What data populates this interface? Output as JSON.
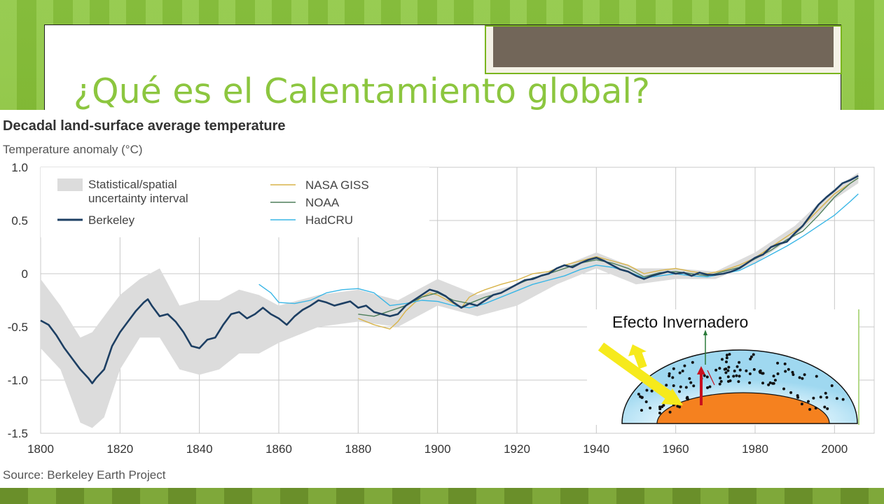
{
  "slide": {
    "title": "¿Qué es el Calentamiento global?"
  },
  "colors": {
    "background_green": "#8cc63f",
    "title_green": "#8cc63f",
    "title_box_fill": "#726659",
    "berkeley": "#1d3f63",
    "nasa_giss": "#d8b44a",
    "noaa": "#4f7f5c",
    "hadcru": "#39b6e6",
    "uncertainty": "#dcdcdc"
  },
  "chart_data": {
    "type": "line",
    "title": "Decadal land-surface average temperature",
    "ylabel": "Temperature anomaly (°C)",
    "source": "Source: Berkeley Earth Project",
    "xlim": [
      1800,
      2010
    ],
    "ylim": [
      -1.5,
      1.0
    ],
    "x_ticks": [
      1800,
      1820,
      1840,
      1860,
      1880,
      1900,
      1920,
      1940,
      1960,
      1980,
      2000
    ],
    "y_ticks": [
      -1.5,
      -1.0,
      -0.5,
      0,
      0.5,
      1.0
    ],
    "y_tick_labels": [
      "-1.5",
      "-1.0",
      "-0.5",
      "0",
      "0.5",
      "1.0"
    ],
    "grid": true,
    "legend_position": "top-left",
    "legend": {
      "uncertainty_line1": "Statistical/spatial",
      "uncertainty_line2": "uncertainty interval",
      "berkeley": "Berkeley",
      "nasa": "NASA GISS",
      "noaa": "NOAA",
      "hadcru": "HadCRU"
    },
    "uncertainty_band": {
      "x": [
        1800,
        1805,
        1810,
        1813,
        1816,
        1820,
        1825,
        1830,
        1835,
        1840,
        1845,
        1850,
        1855,
        1860,
        1870,
        1880,
        1890,
        1900,
        1910,
        1920,
        1930,
        1940,
        1950,
        1960,
        1970,
        1980,
        1990,
        2000,
        2006
      ],
      "upper": [
        -0.05,
        -0.3,
        -0.6,
        -0.55,
        -0.4,
        -0.2,
        -0.05,
        0.05,
        -0.3,
        -0.25,
        -0.25,
        -0.15,
        -0.2,
        -0.3,
        -0.2,
        -0.15,
        -0.25,
        -0.05,
        -0.2,
        -0.1,
        0.05,
        0.2,
        0.05,
        0.05,
        0.02,
        0.2,
        0.45,
        0.8,
        0.95
      ],
      "lower": [
        -0.7,
        -0.9,
        -1.4,
        -1.45,
        -1.35,
        -0.9,
        -0.6,
        -0.6,
        -0.9,
        -0.95,
        -0.9,
        -0.75,
        -0.75,
        -0.65,
        -0.5,
        -0.45,
        -0.5,
        -0.3,
        -0.4,
        -0.3,
        -0.1,
        0.05,
        -0.1,
        -0.05,
        -0.05,
        0.1,
        0.35,
        0.7,
        0.85
      ]
    },
    "series": [
      {
        "name": "Berkeley",
        "x": [
          1800,
          1802,
          1804,
          1806,
          1808,
          1810,
          1812,
          1813,
          1814,
          1816,
          1818,
          1820,
          1822,
          1824,
          1826,
          1827,
          1828,
          1830,
          1832,
          1834,
          1836,
          1838,
          1840,
          1842,
          1844,
          1846,
          1848,
          1850,
          1852,
          1854,
          1856,
          1858,
          1860,
          1862,
          1864,
          1866,
          1868,
          1870,
          1872,
          1874,
          1876,
          1878,
          1880,
          1882,
          1884,
          1886,
          1888,
          1890,
          1892,
          1894,
          1896,
          1898,
          1900,
          1902,
          1904,
          1906,
          1908,
          1910,
          1912,
          1914,
          1916,
          1918,
          1920,
          1922,
          1924,
          1926,
          1928,
          1930,
          1932,
          1934,
          1936,
          1938,
          1940,
          1942,
          1944,
          1946,
          1948,
          1950,
          1952,
          1954,
          1956,
          1958,
          1960,
          1962,
          1964,
          1966,
          1968,
          1970,
          1972,
          1974,
          1976,
          1978,
          1980,
          1982,
          1984,
          1986,
          1988,
          1990,
          1992,
          1994,
          1996,
          1998,
          2000,
          2002,
          2004,
          2006
        ],
        "y": [
          -0.44,
          -0.48,
          -0.58,
          -0.7,
          -0.8,
          -0.9,
          -0.98,
          -1.03,
          -0.98,
          -0.9,
          -0.68,
          -0.55,
          -0.45,
          -0.35,
          -0.27,
          -0.24,
          -0.3,
          -0.4,
          -0.38,
          -0.45,
          -0.55,
          -0.68,
          -0.7,
          -0.62,
          -0.6,
          -0.48,
          -0.38,
          -0.36,
          -0.42,
          -0.38,
          -0.32,
          -0.38,
          -0.42,
          -0.48,
          -0.4,
          -0.34,
          -0.3,
          -0.25,
          -0.27,
          -0.3,
          -0.28,
          -0.26,
          -0.32,
          -0.3,
          -0.36,
          -0.38,
          -0.4,
          -0.38,
          -0.3,
          -0.25,
          -0.2,
          -0.15,
          -0.17,
          -0.21,
          -0.27,
          -0.32,
          -0.28,
          -0.3,
          -0.25,
          -0.2,
          -0.18,
          -0.14,
          -0.1,
          -0.06,
          -0.05,
          -0.02,
          0.0,
          0.05,
          0.08,
          0.06,
          0.1,
          0.13,
          0.15,
          0.12,
          0.08,
          0.04,
          0.02,
          -0.02,
          -0.05,
          -0.02,
          0.0,
          0.02,
          0.0,
          0.01,
          -0.02,
          0.01,
          -0.01,
          -0.01,
          0.0,
          0.02,
          0.05,
          0.1,
          0.15,
          0.18,
          0.25,
          0.28,
          0.3,
          0.38,
          0.45,
          0.55,
          0.65,
          0.72,
          0.78,
          0.85,
          0.88,
          0.92
        ]
      },
      {
        "name": "NASA GISS",
        "x": [
          1880,
          1884,
          1886,
          1888,
          1890,
          1892,
          1894,
          1896,
          1898,
          1900,
          1904,
          1906,
          1908,
          1910,
          1912,
          1916,
          1920,
          1924,
          1928,
          1932,
          1936,
          1940,
          1944,
          1948,
          1952,
          1956,
          1960,
          1964,
          1968,
          1972,
          1976,
          1980,
          1984,
          1988,
          1992,
          1996,
          2000,
          2004,
          2006
        ],
        "y": [
          -0.42,
          -0.48,
          -0.5,
          -0.52,
          -0.45,
          -0.35,
          -0.28,
          -0.22,
          -0.18,
          -0.2,
          -0.28,
          -0.32,
          -0.22,
          -0.18,
          -0.15,
          -0.1,
          -0.06,
          0.0,
          0.02,
          0.08,
          0.12,
          0.16,
          0.12,
          0.08,
          0.0,
          0.03,
          0.05,
          0.02,
          0.0,
          0.03,
          0.08,
          0.15,
          0.25,
          0.35,
          0.45,
          0.6,
          0.75,
          0.85,
          0.9
        ]
      },
      {
        "name": "NOAA",
        "x": [
          1880,
          1884,
          1888,
          1892,
          1896,
          1900,
          1904,
          1908,
          1912,
          1916,
          1920,
          1924,
          1928,
          1932,
          1936,
          1940,
          1944,
          1948,
          1952,
          1956,
          1960,
          1964,
          1968,
          1972,
          1976,
          1980,
          1984,
          1988,
          1992,
          1996,
          2000,
          2004,
          2006
        ],
        "y": [
          -0.38,
          -0.4,
          -0.35,
          -0.3,
          -0.22,
          -0.18,
          -0.25,
          -0.28,
          -0.22,
          -0.18,
          -0.1,
          -0.04,
          0.0,
          0.05,
          0.1,
          0.13,
          0.1,
          0.05,
          -0.03,
          0.01,
          0.02,
          0.0,
          -0.02,
          0.02,
          0.06,
          0.14,
          0.22,
          0.32,
          0.4,
          0.55,
          0.72,
          0.85,
          0.9
        ]
      },
      {
        "name": "HadCRU",
        "x": [
          1855,
          1858,
          1860,
          1864,
          1868,
          1872,
          1876,
          1880,
          1884,
          1888,
          1892,
          1896,
          1900,
          1904,
          1908,
          1912,
          1916,
          1920,
          1924,
          1928,
          1932,
          1936,
          1940,
          1944,
          1948,
          1952,
          1956,
          1960,
          1964,
          1968,
          1972,
          1976,
          1980,
          1984,
          1988,
          1992,
          1996,
          2000,
          2004,
          2006
        ],
        "y": [
          -0.1,
          -0.18,
          -0.27,
          -0.28,
          -0.25,
          -0.18,
          -0.15,
          -0.14,
          -0.18,
          -0.3,
          -0.28,
          -0.25,
          -0.26,
          -0.3,
          -0.32,
          -0.28,
          -0.22,
          -0.16,
          -0.1,
          -0.06,
          -0.02,
          0.04,
          0.08,
          0.06,
          0.02,
          -0.04,
          -0.02,
          0.0,
          -0.02,
          -0.03,
          0.0,
          0.03,
          0.1,
          0.18,
          0.26,
          0.35,
          0.45,
          0.55,
          0.68,
          0.75
        ]
      }
    ]
  },
  "inset": {
    "title": "Efecto Invernadero"
  }
}
